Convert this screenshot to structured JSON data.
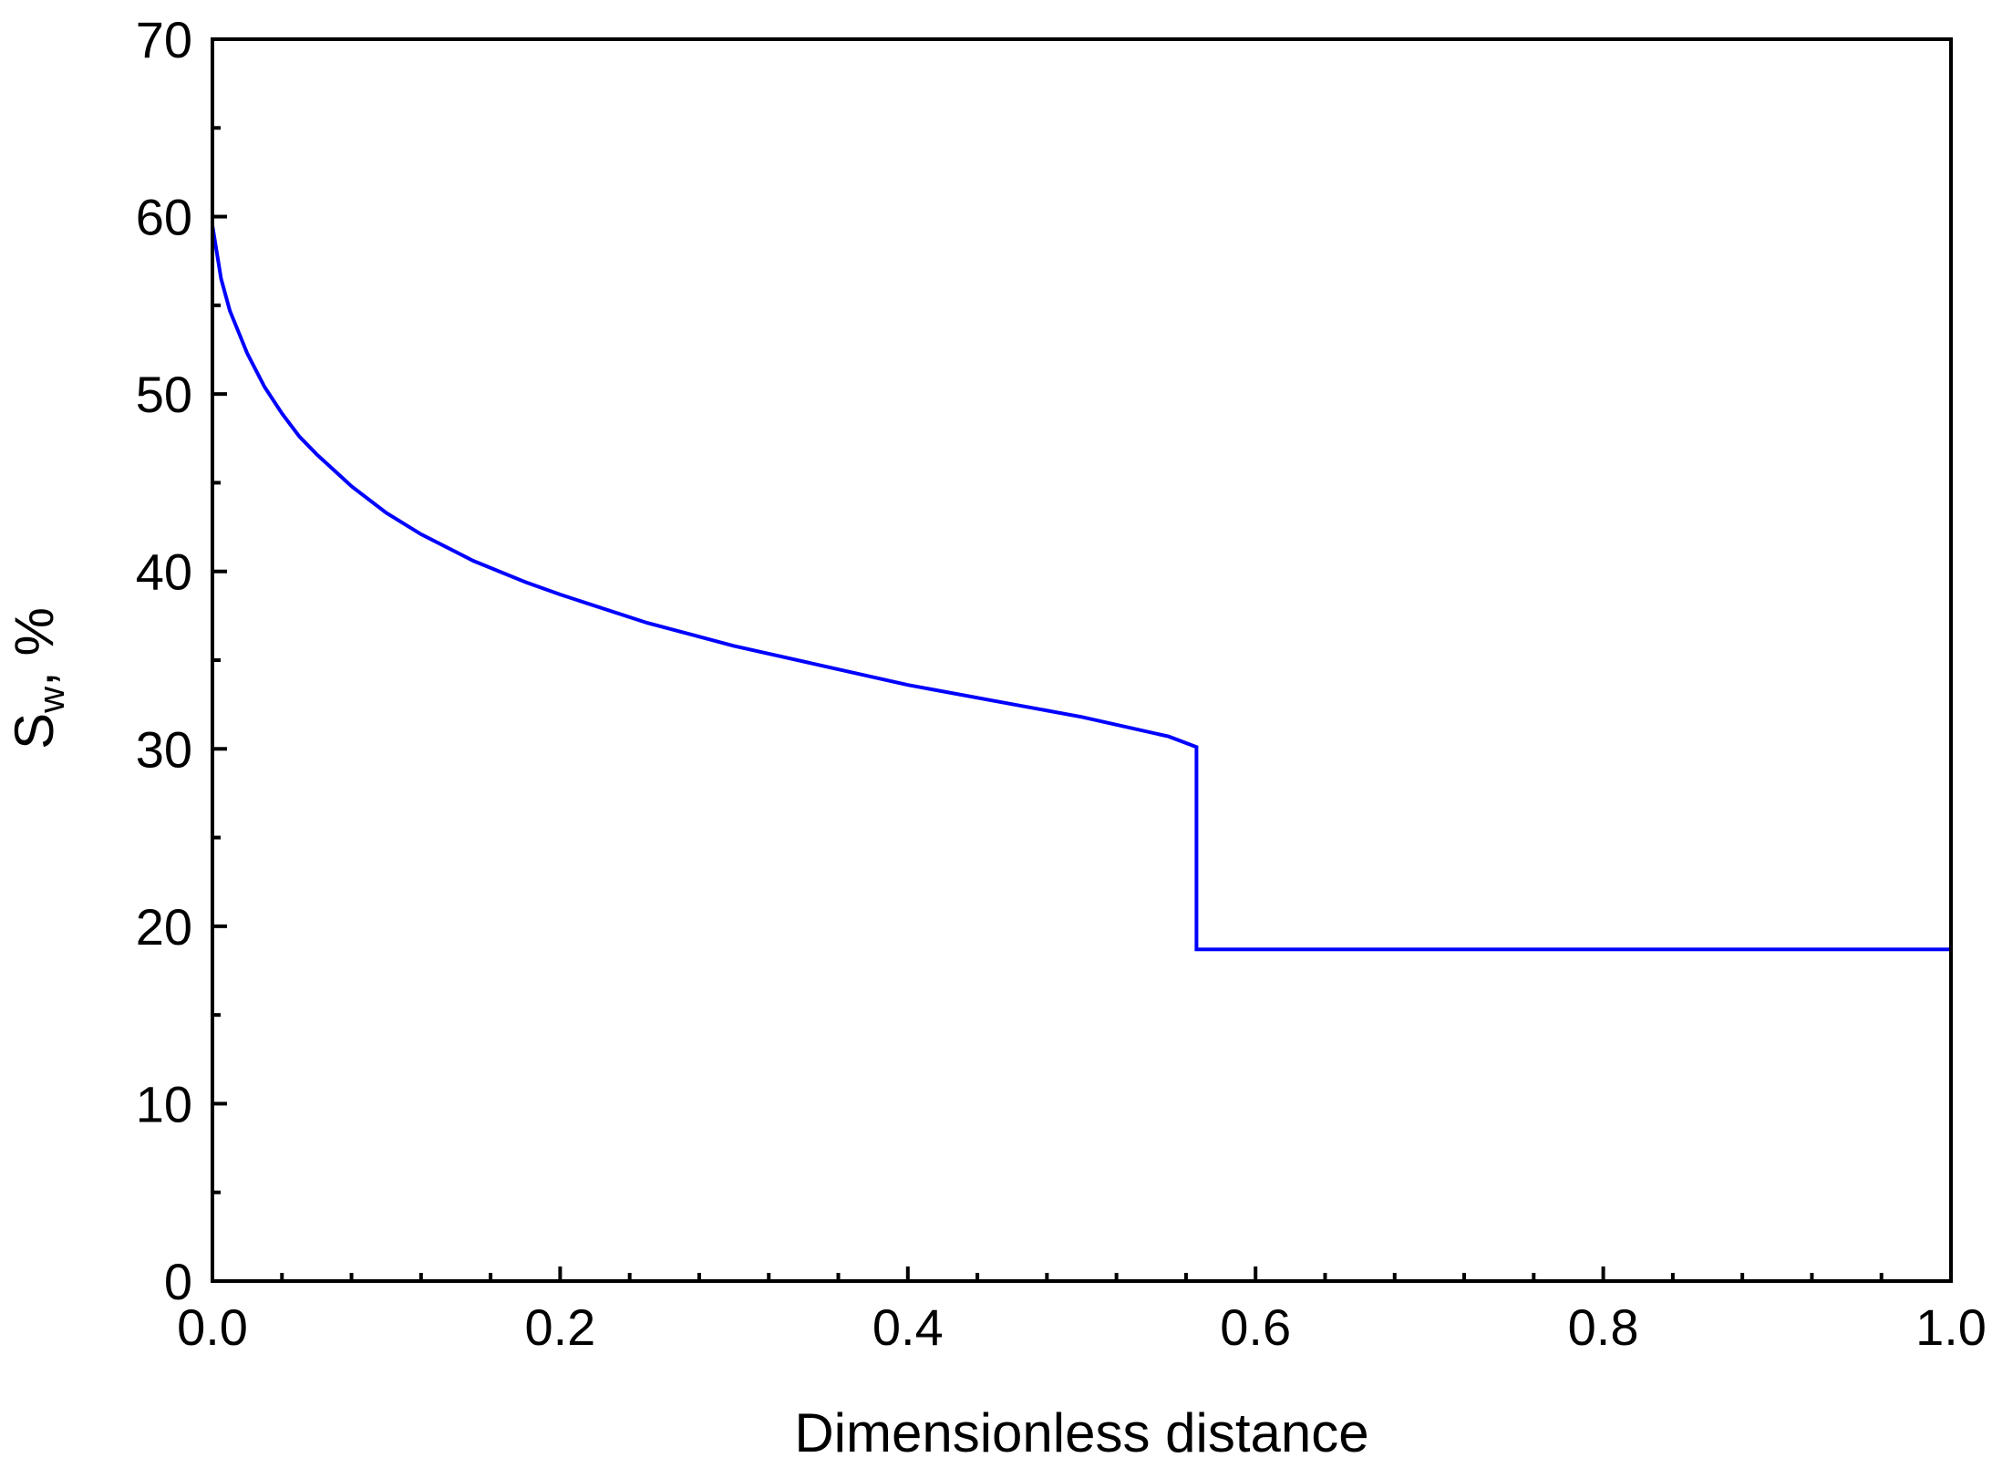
{
  "chart_data": {
    "type": "line",
    "xlabel": "Dimensionless distance",
    "ylabel": {
      "main": "S",
      "subscript": "w",
      "suffix": ",   %"
    },
    "xlim": [
      0.0,
      1.0
    ],
    "ylim": [
      0,
      70
    ],
    "x_ticks": [
      "0.0",
      "0.2",
      "0.4",
      "0.6",
      "0.8",
      "1.0"
    ],
    "x_tick_values": [
      0.0,
      0.2,
      0.4,
      0.6,
      0.8,
      1.0
    ],
    "x_minor_step": 0.04,
    "y_ticks": [
      "0",
      "10",
      "20",
      "30",
      "40",
      "50",
      "60",
      "70"
    ],
    "y_tick_values": [
      0,
      10,
      20,
      30,
      40,
      50,
      60,
      70
    ],
    "y_minor_step": 5,
    "grid": false,
    "legend": "none",
    "line_color": "#0000FF",
    "series": [
      {
        "x": [
          0.0,
          0.005,
          0.01,
          0.02,
          0.03,
          0.04,
          0.05,
          0.06,
          0.08,
          0.1,
          0.12,
          0.15,
          0.18,
          0.2,
          0.25,
          0.3,
          0.35,
          0.4,
          0.45,
          0.5,
          0.55,
          0.566,
          0.566,
          0.7,
          0.8,
          1.0
        ],
        "y": [
          59.5,
          56.5,
          54.7,
          52.3,
          50.4,
          48.9,
          47.6,
          46.6,
          44.8,
          43.3,
          42.1,
          40.6,
          39.4,
          38.7,
          37.1,
          35.8,
          34.7,
          33.6,
          32.7,
          31.8,
          30.7,
          30.1,
          18.7,
          18.7,
          18.7,
          18.7
        ]
      }
    ]
  }
}
